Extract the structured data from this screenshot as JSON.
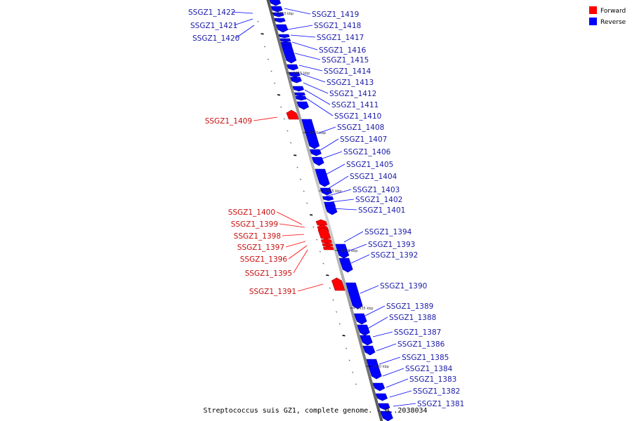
{
  "caption": "Streptococcus suis GZ1, complete genome. - 0..2038034",
  "legend": [
    {
      "label": "Forward",
      "color": "#ff0000"
    },
    {
      "label": "Reverse",
      "color": "#0000ff"
    }
  ],
  "kbp_markers": [
    "1460 kbp",
    "1455 kbp",
    "1450 kbp",
    "1445 kbp",
    "1440 kbp",
    "1435 kbp",
    "1430 kbp"
  ],
  "reverse_genes": [
    "SSGZ1_1422",
    "SSGZ1_1421",
    "SSGZ1_1420",
    "SSGZ1_1419",
    "SSGZ1_1418",
    "SSGZ1_1417",
    "SSGZ1_1416",
    "SSGZ1_1415",
    "SSGZ1_1414",
    "SSGZ1_1413",
    "SSGZ1_1412",
    "SSGZ1_1411",
    "SSGZ1_1410",
    "SSGZ1_1408",
    "SSGZ1_1407",
    "SSGZ1_1406",
    "SSGZ1_1405",
    "SSGZ1_1404",
    "SSGZ1_1403",
    "SSGZ1_1402",
    "SSGZ1_1401",
    "SSGZ1_1394",
    "SSGZ1_1393",
    "SSGZ1_1392",
    "SSGZ1_1390",
    "SSGZ1_1389",
    "SSGZ1_1388",
    "SSGZ1_1387",
    "SSGZ1_1386",
    "SSGZ1_1385",
    "SSGZ1_1384",
    "SSGZ1_1383",
    "SSGZ1_1382",
    "SSGZ1_1381"
  ],
  "forward_genes": [
    "SSGZ1_1409",
    "SSGZ1_1400",
    "SSGZ1_1399",
    "SSGZ1_1398",
    "SSGZ1_1397",
    "SSGZ1_1396",
    "SSGZ1_1395",
    "SSGZ1_1391"
  ]
}
